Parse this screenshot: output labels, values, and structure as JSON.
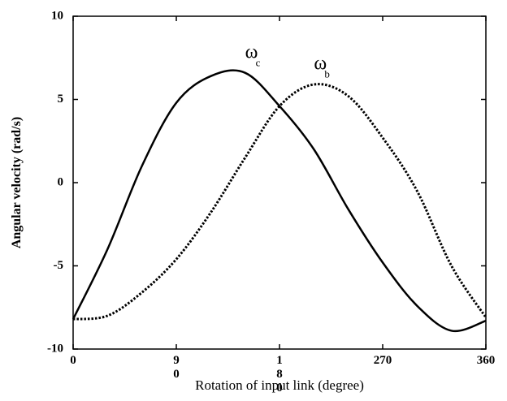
{
  "chart_data": {
    "type": "line",
    "x_label": "Rotation of input link (degree)",
    "y_label": "Angular velocity (rad/s)",
    "x": [
      0,
      30,
      60,
      90,
      120,
      150,
      180,
      210,
      240,
      270,
      300,
      330,
      360
    ],
    "series": [
      {
        "name": "ωc",
        "color": "#000000",
        "style": "solid",
        "values": [
          -8.2,
          -4.0,
          1.0,
          4.8,
          6.4,
          6.6,
          4.6,
          2.0,
          -1.6,
          -4.8,
          -7.4,
          -8.9,
          -8.3
        ]
      },
      {
        "name": "ωb",
        "color": "#000000",
        "style": "dotted",
        "values": [
          -8.2,
          -8.0,
          -6.6,
          -4.6,
          -1.8,
          1.5,
          4.6,
          5.9,
          5.2,
          2.7,
          -0.5,
          -5.0,
          -8.1
        ]
      }
    ],
    "annotations": [
      {
        "text": "ω",
        "sub": "c",
        "x": 150,
        "y": 7.5
      },
      {
        "text": "ω",
        "sub": "b",
        "x": 210,
        "y": 6.8
      }
    ],
    "xlim": [
      0,
      360
    ],
    "xticks": [
      0,
      90,
      180,
      270,
      360
    ],
    "ylim": [
      -10,
      10
    ],
    "yticks": [
      -10,
      -5,
      0,
      5,
      10
    ],
    "grid": false
  }
}
